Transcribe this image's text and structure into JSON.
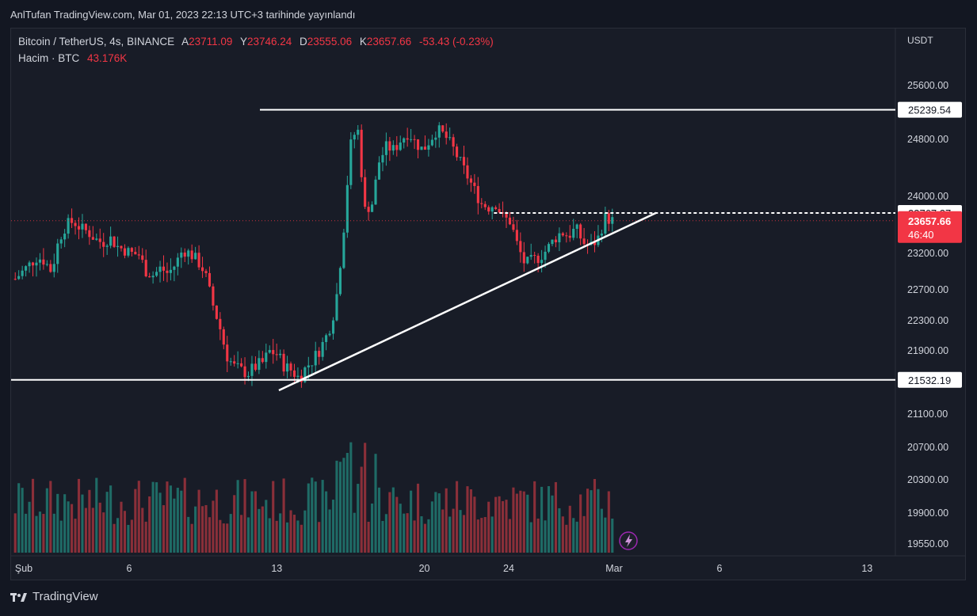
{
  "header": {
    "published": "AnlTufan TradingView.com, Mar 01, 2023 22:13 UTC+3 tarihinde yayınlandı"
  },
  "legend": {
    "symbol": "Bitcoin / TetherUS, 4s, BINANCE",
    "o_label": "A",
    "o_value": "23711.09",
    "h_label": "Y",
    "h_value": "23746.24",
    "l_label": "D",
    "l_value": "23555.06",
    "c_label": "K",
    "c_value": "23657.66",
    "change": "-53.43 (-0.23%)",
    "volume_label": "Hacim · BTC",
    "volume_value": "43.176K"
  },
  "footer": {
    "brand": "TradingView"
  },
  "icons": {
    "lightning": "lightning-icon",
    "logo": "tradingview-logo-icon"
  },
  "colors": {
    "bull": "#26a69a",
    "bear": "#f23645",
    "bg": "#181c27",
    "line": "#ffffff",
    "vol_bull": "#1f6b66",
    "vol_bear": "#8a2f39"
  },
  "chart_data": {
    "type": "candlestick",
    "currency": "USDT",
    "ylim": [
      19550,
      26300
    ],
    "y_ticks": [
      "25600.00",
      "24800.00",
      "24000.00",
      "23200.00",
      "22700.00",
      "22300.00",
      "21900.00",
      "21100.00",
      "20700.00",
      "20300.00",
      "19900.00",
      "19550.00"
    ],
    "x_ticks": [
      "Şub",
      "6",
      "13",
      "20",
      "24",
      "Mar",
      "6",
      "13"
    ],
    "price_labels": [
      {
        "text": "25239.54",
        "type": "level"
      },
      {
        "text": "23767.27",
        "type": "level"
      },
      {
        "text": "21532.19",
        "type": "level"
      },
      {
        "text": "23657.66",
        "countdown": "46:40",
        "type": "current"
      }
    ],
    "closes": [
      22850,
      22950,
      23050,
      23150,
      23100,
      22950,
      23400,
      23600,
      23650,
      23550,
      23500,
      23400,
      23350,
      23420,
      23300,
      23250,
      23200,
      23180,
      22950,
      22900,
      23000,
      22920,
      23050,
      23250,
      23200,
      23100,
      22950,
      22550,
      22250,
      21850,
      21700,
      21650,
      21620,
      21700,
      21750,
      21900,
      21850,
      21700,
      21650,
      21550,
      21700,
      21800,
      21950,
      22150,
      22500,
      23400,
      24700,
      25000,
      23800,
      23900,
      24500,
      24700,
      24650,
      24800,
      24900,
      24750,
      24650,
      24800,
      24950,
      24850,
      24700,
      24500,
      24300,
      24100,
      23900,
      23850,
      23900,
      23700,
      23650,
      23300,
      23050,
      23100,
      23150,
      23250,
      23400,
      23500,
      23450,
      23550,
      23350,
      23300,
      23400,
      23700,
      23660
    ],
    "highs_lows_note": "approximate OHLC per 4h bar from 01 Feb to 01 Mar 2023",
    "levels": {
      "resistance": 25239.54,
      "triangle_top": 23767.27,
      "support": 21532.19
    },
    "trendline": [
      {
        "x": "Feb 13",
        "y": 21400
      },
      {
        "x": "Mar 07",
        "y": 23770
      }
    ],
    "volume_last": 43.176
  }
}
